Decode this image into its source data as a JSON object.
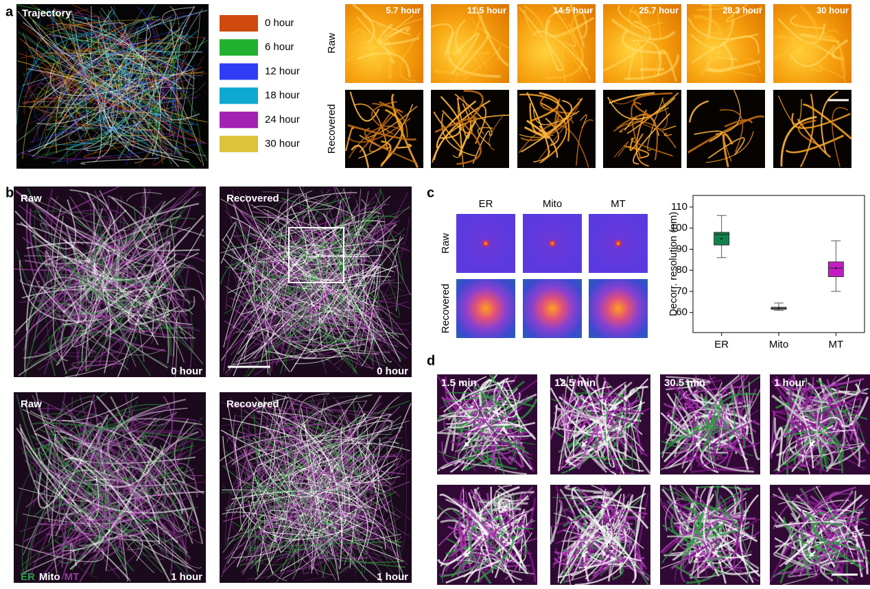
{
  "panel_labels": [
    "a",
    "b",
    "c",
    "d"
  ],
  "panel_a": {
    "trajectory_label": "Trajectory",
    "legend": [
      {
        "label": "0 hour",
        "color": "#cf4a0c"
      },
      {
        "label": "6 hour",
        "color": "#22b12f"
      },
      {
        "label": "12 hour",
        "color": "#2f3df5"
      },
      {
        "label": "18 hour",
        "color": "#0fa8d0"
      },
      {
        "label": "24 hour",
        "color": "#a322b3"
      },
      {
        "label": "30 hour",
        "color": "#ddc23a"
      }
    ],
    "row_labels": [
      "Raw",
      "Recovered"
    ],
    "times": [
      "5.7 hour",
      "11.5 hour",
      "14.5 hour",
      "25.7 hour",
      "28.3 hour",
      "30 hour"
    ]
  },
  "panel_b": {
    "raw_label": "Raw",
    "recovered_label": "Recovered",
    "times": [
      "0 hour",
      "1 hour"
    ],
    "channels": [
      {
        "label": "ER",
        "color": "#1fa04a"
      },
      {
        "label": "Mito",
        "color": "#ffffff"
      },
      {
        "label": "MT",
        "color": "#9a3aa0"
      }
    ]
  },
  "panel_c": {
    "columns": [
      "ER",
      "Mito",
      "MT"
    ],
    "rows": [
      "Raw",
      "Recovered"
    ]
  },
  "chart_data": {
    "type": "box",
    "y_label": "Decorr. resolution (nm)",
    "categories": [
      "ER",
      "Mito",
      "MT"
    ],
    "colors": [
      "#12804a",
      "#7f7f7f",
      "#c41cc4"
    ],
    "boxes": [
      {
        "min": 86,
        "q1": 92,
        "median": 97,
        "q3": 98,
        "max": 106,
        "mean": 95
      },
      {
        "min": 61,
        "q1": 61.5,
        "median": 62,
        "q3": 62.5,
        "max": 64.5,
        "mean": 62
      },
      {
        "min": 70,
        "q1": 77,
        "median": 81,
        "q3": 84,
        "max": 94,
        "mean": 81
      }
    ],
    "ylim": [
      50.5,
      115.5
    ],
    "yticks": [
      60,
      70,
      80,
      90,
      100,
      110
    ]
  },
  "panel_d": {
    "times": [
      "1.5 min",
      "12.5 min",
      "30.5 min",
      "1 hour"
    ]
  }
}
